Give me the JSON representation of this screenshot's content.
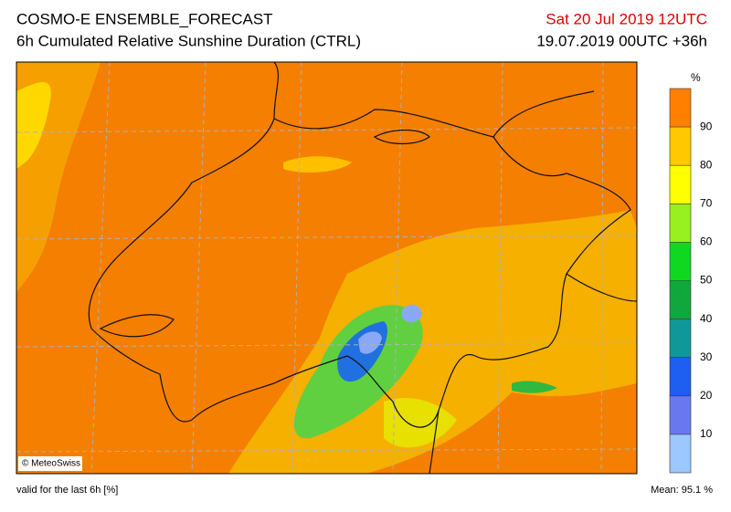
{
  "header": {
    "title": "COSMO-E ENSEMBLE_FORECAST",
    "subtitle": "6h Cumulated Relative Sunshine Duration (CTRL)",
    "valid_time": "Sat 20 Jul 2019 12UTC",
    "run": "19.07.2019 00UTC +36h"
  },
  "map": {
    "credit": "© MeteoSwiss"
  },
  "colorbar": {
    "unit": "%",
    "ticks": [
      10,
      20,
      30,
      40,
      50,
      60,
      70,
      80,
      90
    ],
    "colors": [
      "#9cc8ff",
      "#6a78f0",
      "#1e5ef0",
      "#109898",
      "#10a83c",
      "#10d820",
      "#98f020",
      "#ffff00",
      "#ffc800",
      "#ff8000"
    ]
  },
  "footer": {
    "note": "valid for the last 6h [%]",
    "mean": "Mean:  95.1 %"
  }
}
